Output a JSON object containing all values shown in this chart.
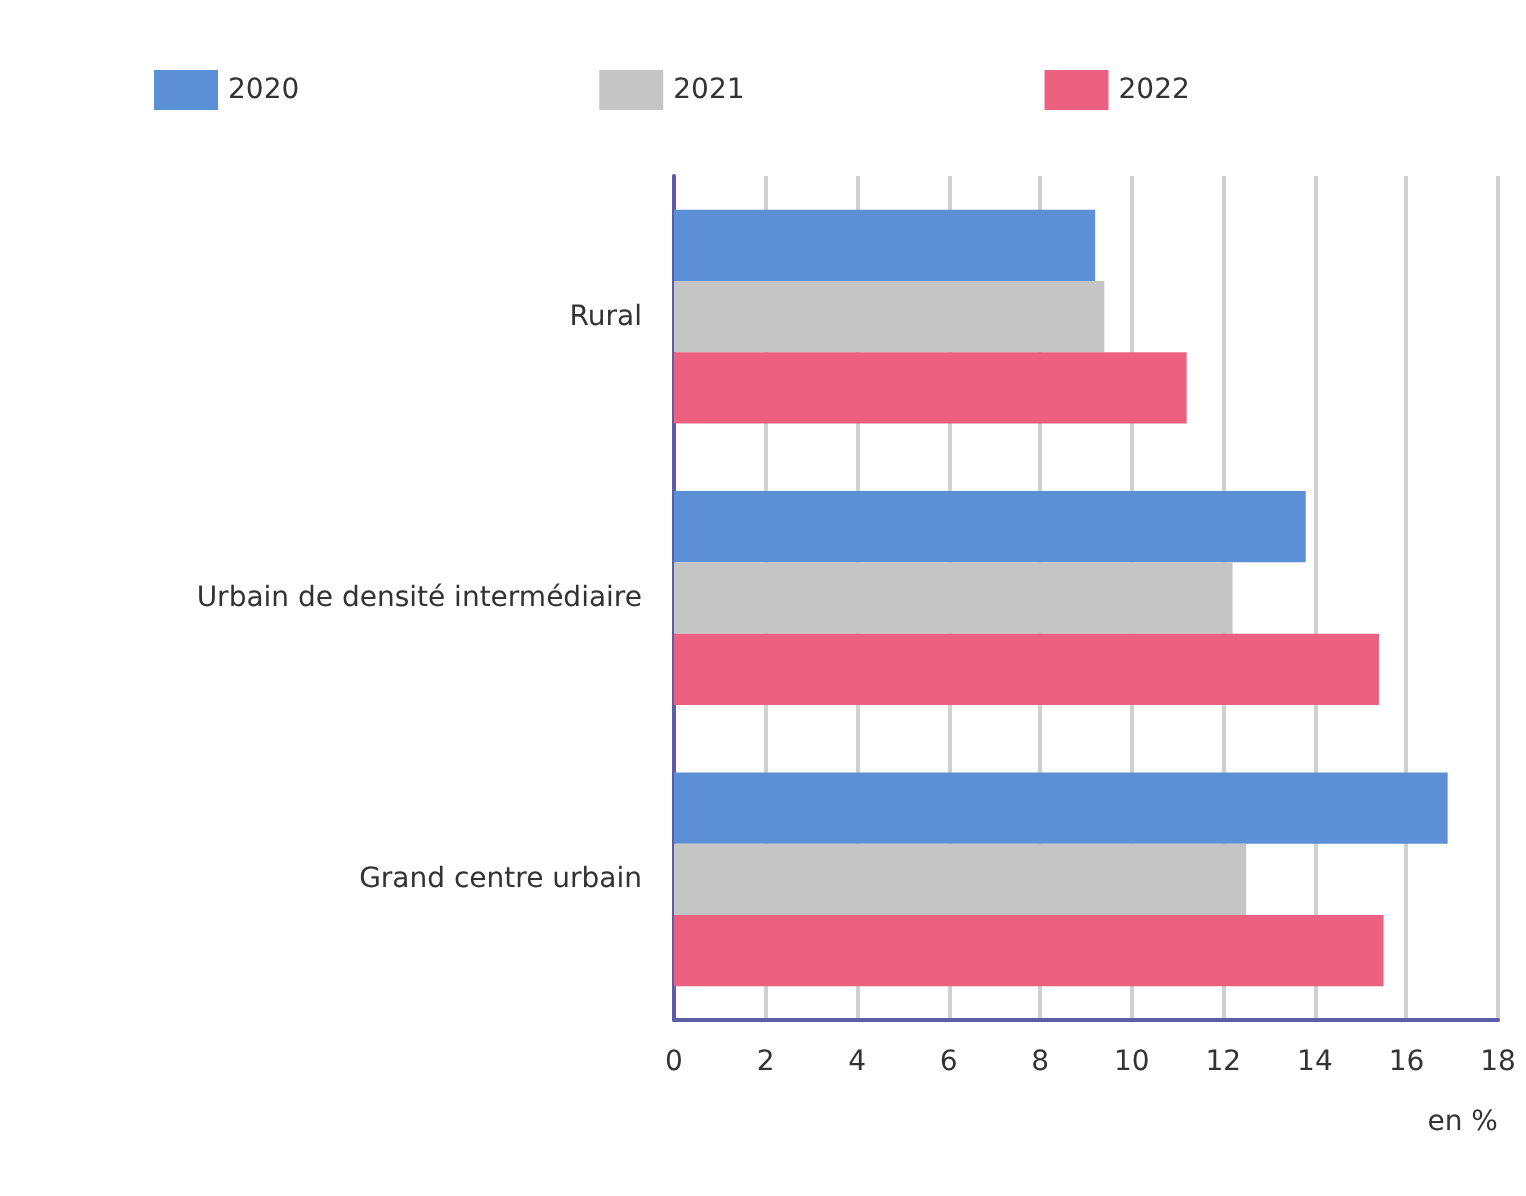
{
  "chart_data": {
    "type": "bar",
    "orientation": "horizontal",
    "xlabel": "en %",
    "categories": [
      "Rural",
      "Urbain de densité intermédiaire",
      "Grand centre urbain"
    ],
    "series": [
      {
        "name": "2020",
        "color": "#5b8fd6",
        "values": [
          9.2,
          13.8,
          16.9
        ]
      },
      {
        "name": "2021",
        "color": "#c5c5c5",
        "values": [
          9.4,
          12.2,
          12.5
        ]
      },
      {
        "name": "2022",
        "color": "#ec6180",
        "values": [
          11.2,
          15.4,
          15.5
        ]
      }
    ],
    "xlim": [
      0,
      18
    ],
    "xticks": [
      0,
      2,
      4,
      6,
      8,
      10,
      12,
      14,
      16,
      18
    ],
    "grid": "x",
    "legend": "top"
  }
}
